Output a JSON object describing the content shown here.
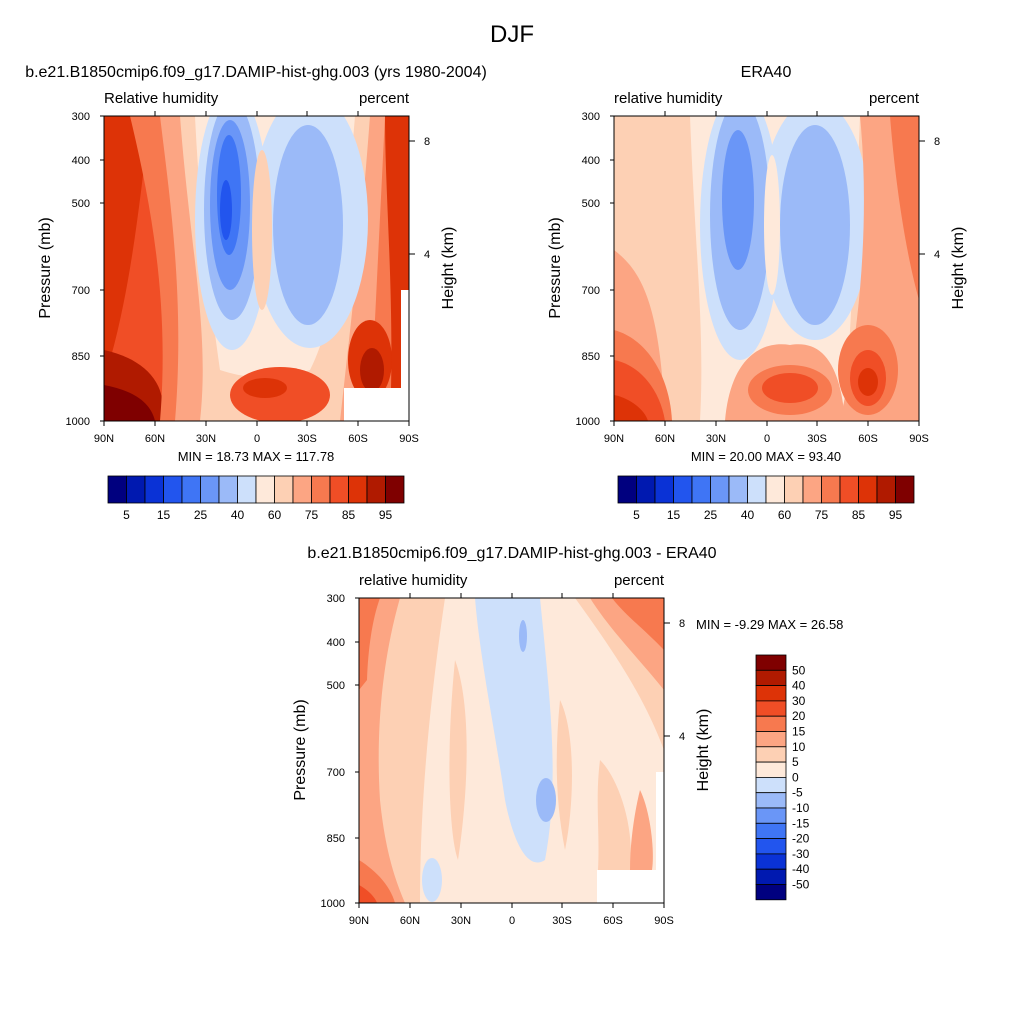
{
  "figure": {
    "title": "DJF"
  },
  "chart_data": [
    {
      "type": "heatmap",
      "title": "b.e21.B1850cmip6.f09_g17.DAMIP-hist-ghg.003 (yrs 1980-2004)",
      "left_label": "Relative humidity",
      "right_label": "percent",
      "ylabel": "Pressure (mb)",
      "ylabel_right": "Height (km)",
      "x_ticks": [
        "90N",
        "60N",
        "30N",
        "0",
        "30S",
        "60S",
        "90S"
      ],
      "y_ticks": [
        "300",
        "400",
        "500",
        "700",
        "850",
        "1000"
      ],
      "y_ticks_right": [
        "8",
        "4"
      ],
      "stats": "MIN =  18.73  MAX = 117.78",
      "colorbar_labels": [
        "5",
        "15",
        "25",
        "40",
        "60",
        "75",
        "85",
        "95"
      ],
      "levels": [
        5,
        10,
        15,
        20,
        25,
        30,
        40,
        50,
        60,
        70,
        75,
        80,
        85,
        90,
        95
      ],
      "colors": [
        "#00007f",
        "#0019b0",
        "#0a32d6",
        "#2255ee",
        "#3f75f5",
        "#6a96f7",
        "#9bbaf8",
        "#cde0fb",
        "#fee9da",
        "#fdd0b4",
        "#fca583",
        "#f7794f",
        "#f04e26",
        "#dd3307",
        "#b01a00",
        "#7f0000"
      ],
      "ylim": [
        1000,
        300
      ],
      "xlim": [
        90,
        -90
      ]
    },
    {
      "type": "heatmap",
      "title": "ERA40",
      "left_label": "relative humidity",
      "right_label": "percent",
      "ylabel": "Pressure (mb)",
      "ylabel_right": "Height (km)",
      "x_ticks": [
        "90N",
        "60N",
        "30N",
        "0",
        "30S",
        "60S",
        "90S"
      ],
      "y_ticks": [
        "300",
        "400",
        "500",
        "700",
        "850",
        "1000"
      ],
      "y_ticks_right": [
        "8",
        "4"
      ],
      "stats": "MIN =  20.00  MAX =  93.40",
      "colorbar_labels": [
        "5",
        "15",
        "25",
        "40",
        "60",
        "75",
        "85",
        "95"
      ],
      "levels": [
        5,
        10,
        15,
        20,
        25,
        30,
        40,
        50,
        60,
        70,
        75,
        80,
        85,
        90,
        95
      ],
      "colors": [
        "#00007f",
        "#0019b0",
        "#0a32d6",
        "#2255ee",
        "#3f75f5",
        "#6a96f7",
        "#9bbaf8",
        "#cde0fb",
        "#fee9da",
        "#fdd0b4",
        "#fca583",
        "#f7794f",
        "#f04e26",
        "#dd3307",
        "#b01a00",
        "#7f0000"
      ],
      "ylim": [
        1000,
        300
      ],
      "xlim": [
        90,
        -90
      ]
    },
    {
      "type": "heatmap",
      "title": "b.e21.B1850cmip6.f09_g17.DAMIP-hist-ghg.003 - ERA40",
      "left_label": "relative humidity",
      "right_label": "percent",
      "ylabel": "Pressure (mb)",
      "ylabel_right": "Height (km)",
      "x_ticks": [
        "90N",
        "60N",
        "30N",
        "0",
        "30S",
        "60S",
        "90S"
      ],
      "y_ticks": [
        "300",
        "400",
        "500",
        "700",
        "850",
        "1000"
      ],
      "y_ticks_right": [
        "8",
        "4"
      ],
      "stats": "MIN =  -9.29  MAX =  26.58",
      "colorbar_labels": [
        "50",
        "40",
        "30",
        "20",
        "15",
        "10",
        "5",
        "0",
        "-5",
        "-10",
        "-15",
        "-20",
        "-30",
        "-40",
        "-50"
      ],
      "levels": [
        50,
        40,
        30,
        20,
        15,
        10,
        5,
        0,
        -5,
        -10,
        -15,
        -20,
        -30,
        -40,
        -50
      ],
      "colors": [
        "#7f0000",
        "#b01a00",
        "#dd3307",
        "#f04e26",
        "#f7794f",
        "#fca583",
        "#fdd0b4",
        "#fee9da",
        "#cde0fb",
        "#9bbaf8",
        "#6a96f7",
        "#3f75f5",
        "#2255ee",
        "#0a32d6",
        "#0019b0",
        "#00007f"
      ],
      "ylim": [
        1000,
        300
      ],
      "xlim": [
        90,
        -90
      ]
    }
  ]
}
